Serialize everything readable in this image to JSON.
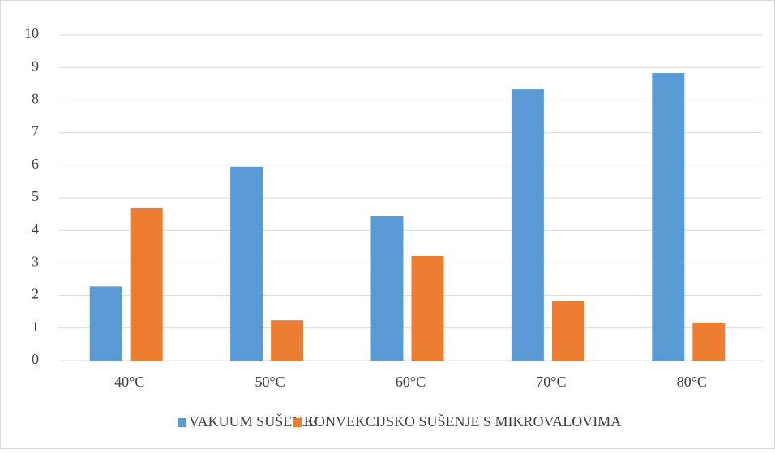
{
  "chart_data": {
    "type": "bar",
    "categories": [
      "40°C",
      "50°C",
      "60°C",
      "70°C",
      "80°C"
    ],
    "series": [
      {
        "name": "VAKUUM SUŠENJE",
        "color": "#5b9bd5",
        "values": [
          2.28,
          5.95,
          4.43,
          8.33,
          8.83
        ]
      },
      {
        "name": "KONVEKCIJSKO SUŠENJE S MIKROVALOVIMA",
        "color": "#ed7d31",
        "values": [
          4.68,
          1.24,
          3.21,
          1.82,
          1.17
        ]
      }
    ],
    "ylim": [
      0,
      10
    ],
    "yticks": [
      0,
      1,
      2,
      3,
      4,
      5,
      6,
      7,
      8,
      9,
      10
    ],
    "grid": true,
    "legend": "bottom"
  }
}
